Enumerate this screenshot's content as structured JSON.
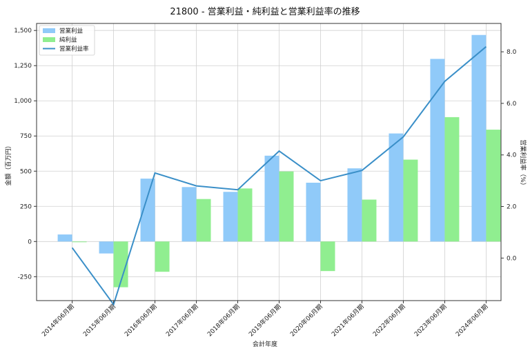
{
  "chart_data": {
    "type": "bar",
    "title": "21800 - 営業利益・純利益と営業利益率の推移",
    "xlabel": "会計年度",
    "ylabel": "金額（百万円）",
    "y2label": "営業利益率（%）",
    "categories": [
      "2014年06月期",
      "2015年06月期",
      "2016年06月期",
      "2017年06月期",
      "2018年06月期",
      "2019年06月期",
      "2020年06月期",
      "2021年06月期",
      "2022年06月期",
      "2023年06月期",
      "2024年06月期"
    ],
    "series": [
      {
        "name": "営業利益",
        "kind": "bar",
        "axis": "left",
        "color": "#90caf9",
        "values": [
          50,
          -85,
          447,
          387,
          353,
          610,
          418,
          520,
          768,
          1298,
          1468
        ]
      },
      {
        "name": "純利益",
        "kind": "bar",
        "axis": "left",
        "color": "#90ee90",
        "values": [
          -5,
          -325,
          -215,
          302,
          377,
          498,
          -210,
          298,
          582,
          884,
          795
        ]
      },
      {
        "name": "営業利益率",
        "kind": "line",
        "axis": "right",
        "color": "#3a8fc8",
        "values": [
          0.4,
          -1.8,
          3.3,
          2.8,
          2.65,
          4.15,
          3.0,
          3.4,
          4.7,
          6.85,
          8.2
        ]
      }
    ],
    "ylim": [
      -420,
      1550
    ],
    "y2lim": [
      -1.65,
      9.1
    ],
    "yticks": [
      -250,
      0,
      250,
      500,
      750,
      1000,
      1250,
      1500
    ],
    "yticklabels": [
      "-250",
      "0",
      "250",
      "500",
      "750",
      "1,000",
      "1,250",
      "1,500"
    ],
    "y2ticks": [
      0,
      2,
      4,
      6,
      8
    ],
    "y2ticklabels": [
      "0.0",
      "2.0",
      "4.0",
      "6.0",
      "8.0"
    ],
    "grid": true,
    "legend": "top-left"
  }
}
